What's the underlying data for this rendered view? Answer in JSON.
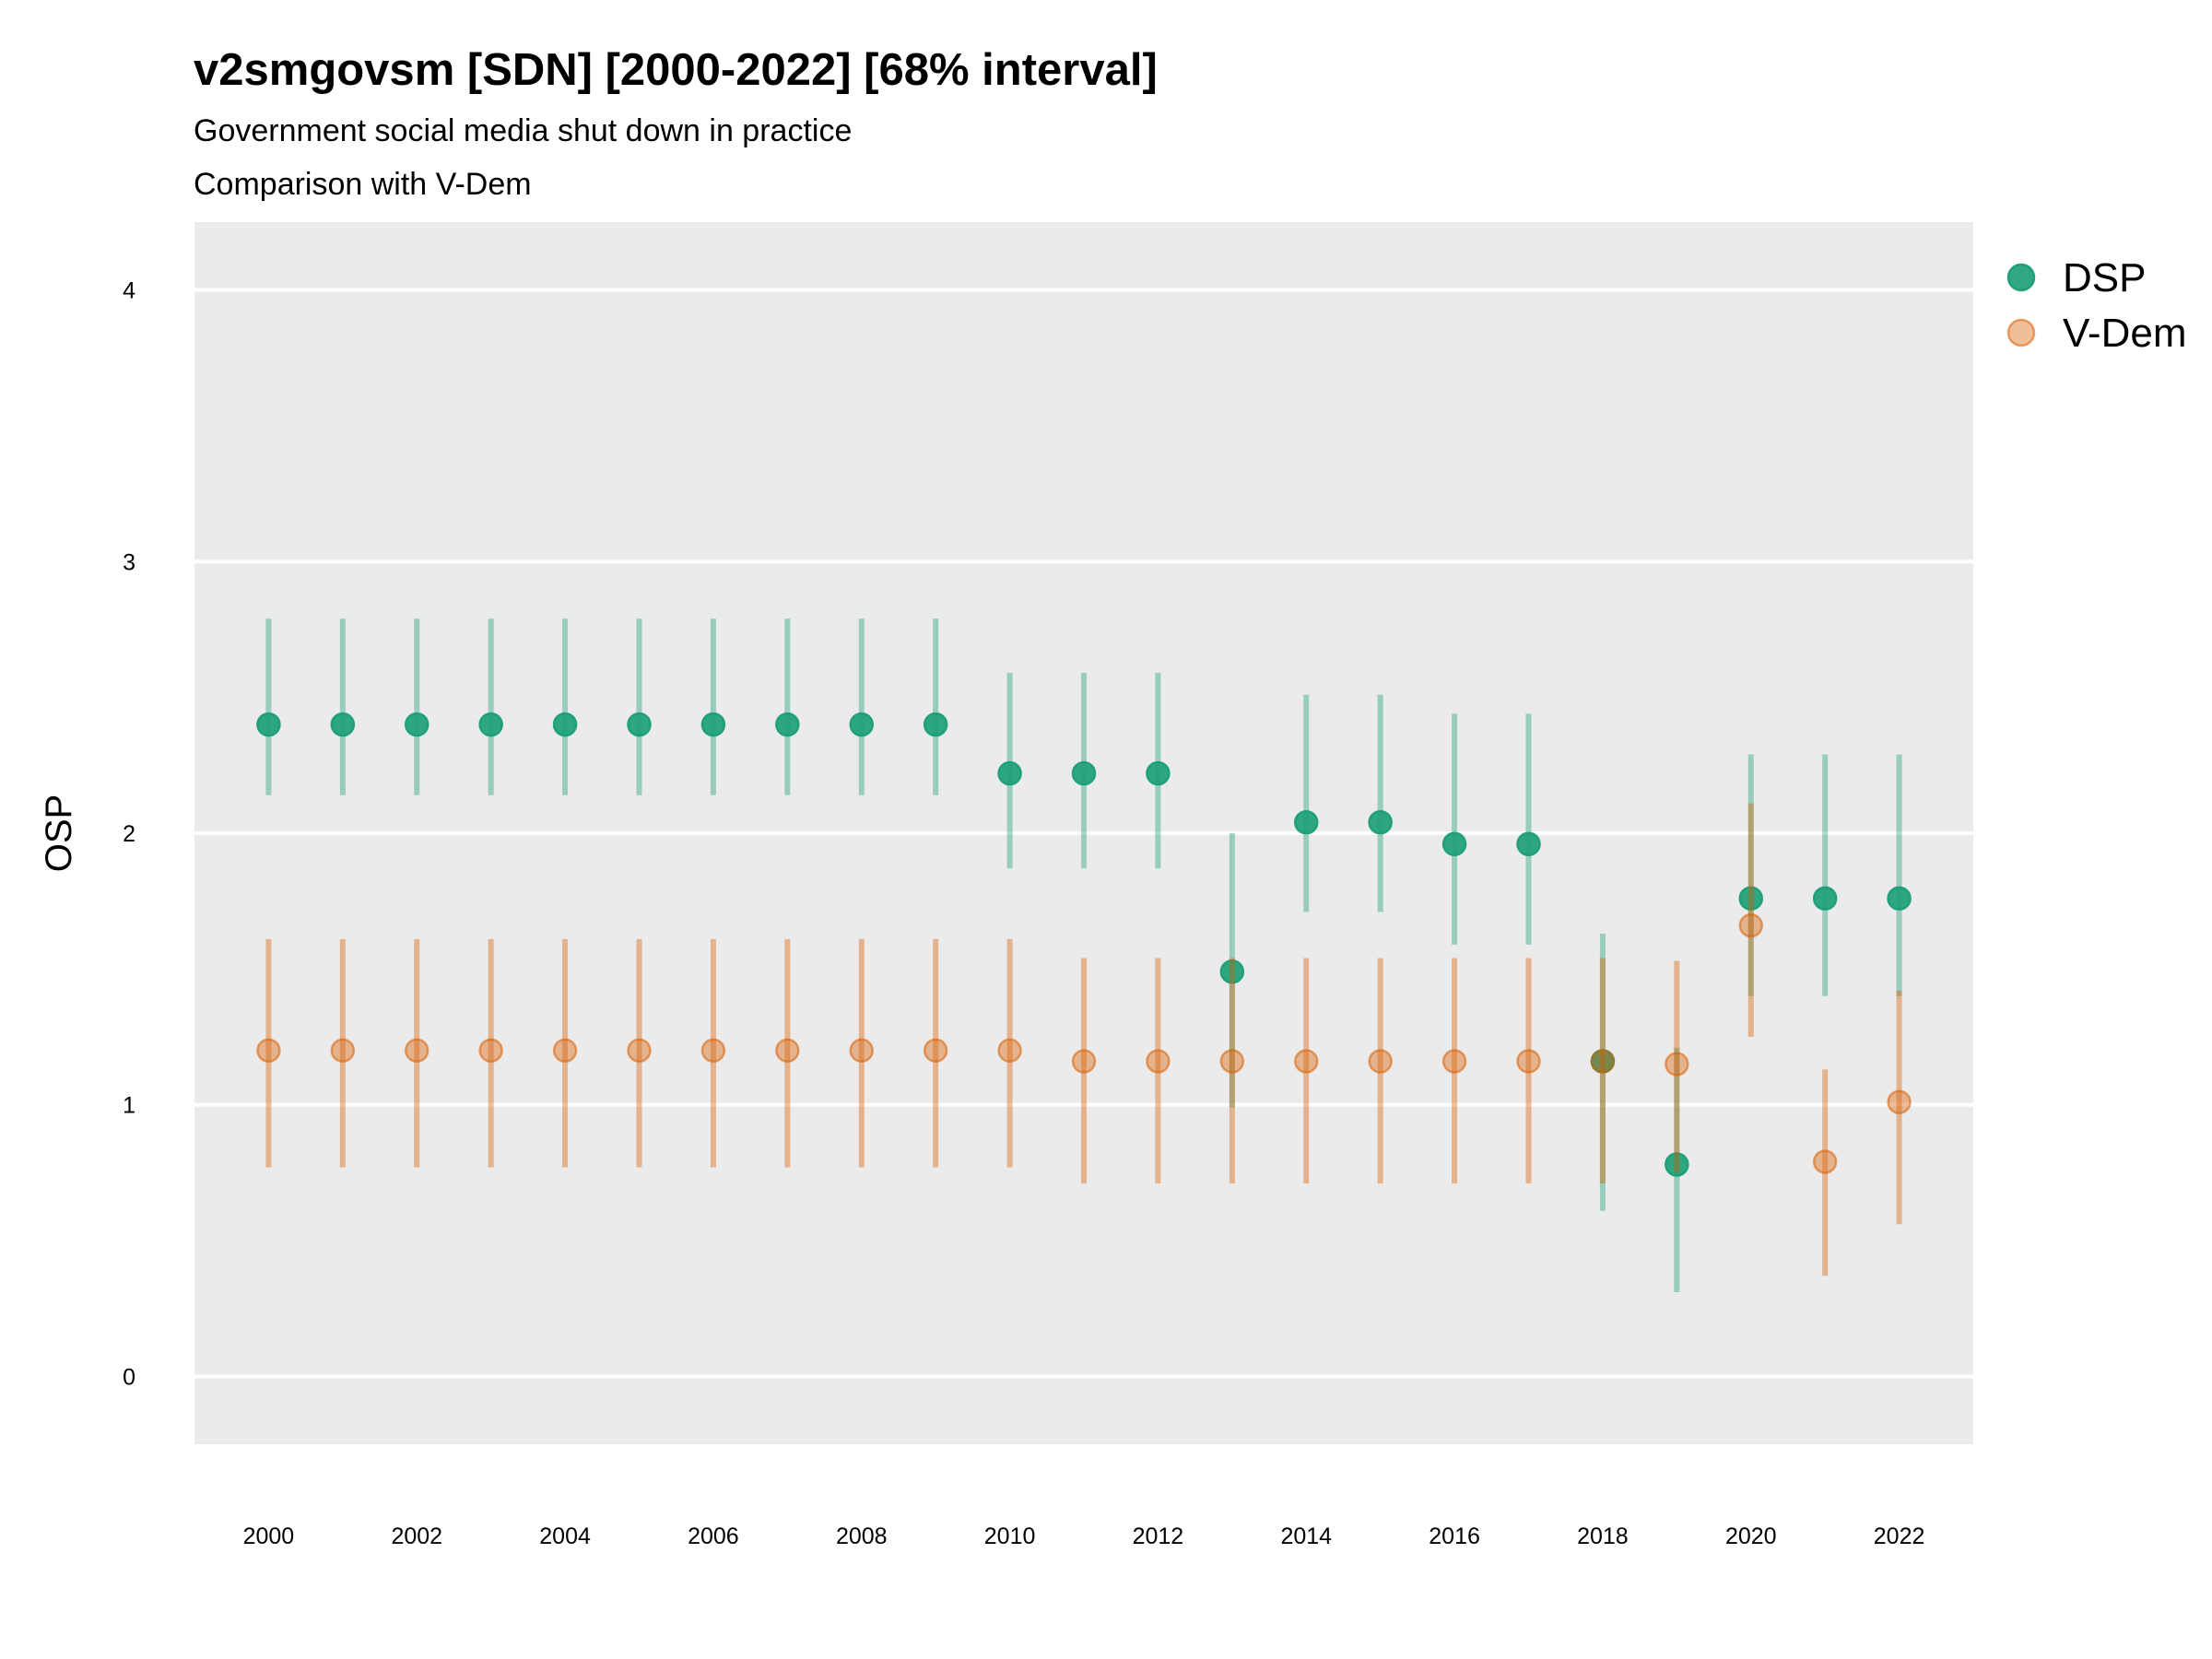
{
  "chart_data": {
    "type": "scatter",
    "title": "v2smgovsm [SDN] [2000-2022] [68% interval]",
    "subtitle_lines": [
      "Government social media shut down in practice",
      "Comparison with V-Dem"
    ],
    "ylabel": "OSP",
    "xlabel": "",
    "x_ticks": [
      "2000",
      "2002",
      "2004",
      "2006",
      "2008",
      "2010",
      "2012",
      "2014",
      "2016",
      "2018",
      "2020",
      "2022"
    ],
    "y_ticks": [
      "0",
      "1",
      "2",
      "3",
      "4"
    ],
    "xlim": [
      1999,
      2023
    ],
    "ylim": [
      -0.25,
      4.25
    ],
    "grid": true,
    "legend_position": "right",
    "series": [
      {
        "name": "DSP",
        "color": "#1b9e77",
        "x": [
          2000,
          2001,
          2002,
          2003,
          2004,
          2005,
          2006,
          2007,
          2008,
          2009,
          2010,
          2011,
          2012,
          2013,
          2014,
          2015,
          2016,
          2017,
          2018,
          2019,
          2020,
          2021,
          2022
        ],
        "y": [
          2.4,
          2.4,
          2.4,
          2.4,
          2.4,
          2.4,
          2.4,
          2.4,
          2.4,
          2.4,
          2.22,
          2.22,
          2.22,
          1.49,
          2.04,
          2.04,
          1.96,
          1.96,
          1.16,
          0.78,
          1.76,
          1.76,
          1.76
        ],
        "lower": [
          2.14,
          2.14,
          2.14,
          2.14,
          2.14,
          2.14,
          2.14,
          2.14,
          2.14,
          2.14,
          1.87,
          1.87,
          1.87,
          0.99,
          1.71,
          1.71,
          1.59,
          1.59,
          0.61,
          0.31,
          1.4,
          1.4,
          1.4
        ],
        "upper": [
          2.79,
          2.79,
          2.79,
          2.79,
          2.79,
          2.79,
          2.79,
          2.79,
          2.79,
          2.79,
          2.59,
          2.59,
          2.59,
          2.0,
          2.51,
          2.51,
          2.44,
          2.44,
          1.63,
          1.21,
          2.29,
          2.29,
          2.29
        ]
      },
      {
        "name": "V-Dem",
        "color": "#d95f02",
        "x": [
          2000,
          2001,
          2002,
          2003,
          2004,
          2005,
          2006,
          2007,
          2008,
          2009,
          2010,
          2011,
          2012,
          2013,
          2014,
          2015,
          2016,
          2017,
          2018,
          2019,
          2020,
          2021,
          2022
        ],
        "y": [
          1.2,
          1.2,
          1.2,
          1.2,
          1.2,
          1.2,
          1.2,
          1.2,
          1.2,
          1.2,
          1.2,
          1.16,
          1.16,
          1.16,
          1.16,
          1.16,
          1.16,
          1.16,
          1.16,
          1.15,
          1.66,
          0.79,
          1.01
        ],
        "lower": [
          0.77,
          0.77,
          0.77,
          0.77,
          0.77,
          0.77,
          0.77,
          0.77,
          0.77,
          0.77,
          0.77,
          0.71,
          0.71,
          0.71,
          0.71,
          0.71,
          0.71,
          0.71,
          0.71,
          0.75,
          1.25,
          0.37,
          0.56
        ],
        "upper": [
          1.61,
          1.61,
          1.61,
          1.61,
          1.61,
          1.61,
          1.61,
          1.61,
          1.61,
          1.61,
          1.61,
          1.54,
          1.54,
          1.54,
          1.54,
          1.54,
          1.54,
          1.54,
          1.54,
          1.53,
          2.11,
          1.13,
          1.42
        ]
      }
    ]
  }
}
